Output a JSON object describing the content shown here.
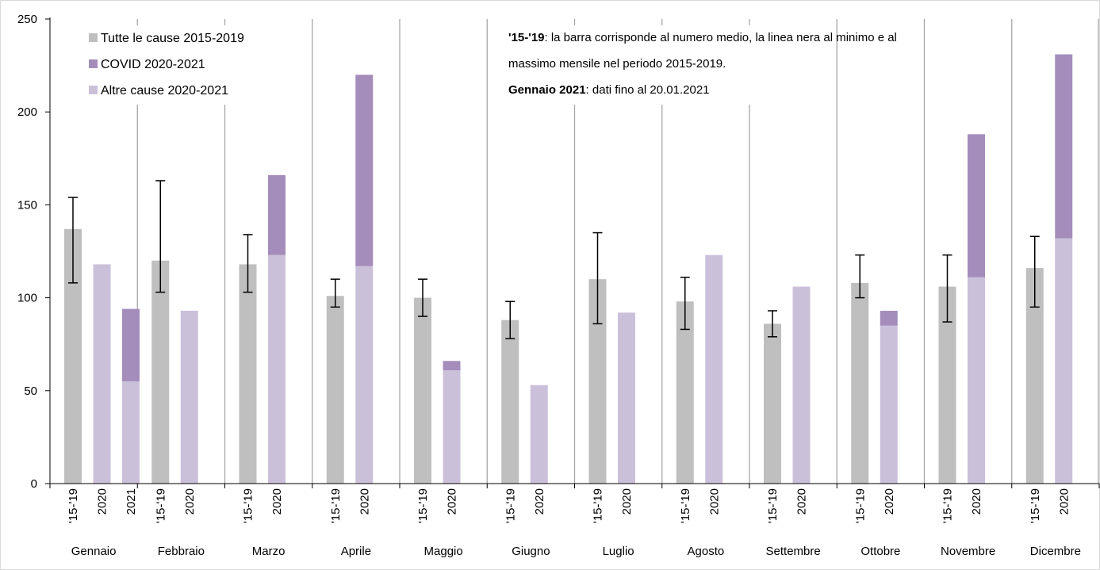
{
  "chart_data": {
    "type": "bar",
    "stacked": true,
    "ylim": [
      0,
      250
    ],
    "yticks": [
      0,
      50,
      100,
      150,
      200,
      250
    ],
    "grid": false,
    "legend_position": "top-left",
    "colors": {
      "baseline": "#bfbfbf",
      "covid": "#a48dbb",
      "other": "#cbc0da",
      "errorbar": "#000000",
      "separator": "#a6a6a6"
    },
    "legend": [
      {
        "key": "baseline",
        "label": "Tutte le cause 2015-2019"
      },
      {
        "key": "covid",
        "label": "COVID 2020-2021"
      },
      {
        "key": "other",
        "label": "Altre cause 2020-2021"
      }
    ],
    "notes": [
      {
        "bold": "'15-'19",
        "text": ": la barra corrisponde al numero medio, la linea nera al minimo e al"
      },
      {
        "bold": "",
        "text": "massimo mensile nel periodo 2015-2019."
      },
      {
        "bold": "Gennaio 2021",
        "text": ": dati fino al 20.01.2021"
      }
    ],
    "months": [
      {
        "name": "Gennaio",
        "bars": [
          {
            "label": "'15-'19",
            "mean": 137,
            "min": 108,
            "max": 154
          },
          {
            "label": "2020",
            "other": 118,
            "covid": 0
          },
          {
            "label": "2021",
            "other": 55,
            "covid": 39
          }
        ]
      },
      {
        "name": "Febbraio",
        "bars": [
          {
            "label": "'15-'19",
            "mean": 120,
            "min": 103,
            "max": 163
          },
          {
            "label": "2020",
            "other": 93,
            "covid": 0
          }
        ]
      },
      {
        "name": "Marzo",
        "bars": [
          {
            "label": "'15-'19",
            "mean": 118,
            "min": 103,
            "max": 134
          },
          {
            "label": "2020",
            "other": 123,
            "covid": 43
          }
        ]
      },
      {
        "name": "Aprile",
        "bars": [
          {
            "label": "'15-'19",
            "mean": 101,
            "min": 95,
            "max": 110
          },
          {
            "label": "2020",
            "other": 117,
            "covid": 103
          }
        ]
      },
      {
        "name": "Maggio",
        "bars": [
          {
            "label": "'15-'19",
            "mean": 100,
            "min": 90,
            "max": 110
          },
          {
            "label": "2020",
            "other": 61,
            "covid": 5
          }
        ]
      },
      {
        "name": "Giugno",
        "bars": [
          {
            "label": "'15-'19",
            "mean": 88,
            "min": 78,
            "max": 98
          },
          {
            "label": "2020",
            "other": 53,
            "covid": 0
          }
        ]
      },
      {
        "name": "Luglio",
        "bars": [
          {
            "label": "'15-'19",
            "mean": 110,
            "min": 86,
            "max": 135
          },
          {
            "label": "2020",
            "other": 92,
            "covid": 0
          }
        ]
      },
      {
        "name": "Agosto",
        "bars": [
          {
            "label": "'15-'19",
            "mean": 98,
            "min": 83,
            "max": 111
          },
          {
            "label": "2020",
            "other": 123,
            "covid": 0
          }
        ]
      },
      {
        "name": "Settembre",
        "bars": [
          {
            "label": "'15-'19",
            "mean": 86,
            "min": 79,
            "max": 93
          },
          {
            "label": "2020",
            "other": 106,
            "covid": 0
          }
        ]
      },
      {
        "name": "Ottobre",
        "bars": [
          {
            "label": "'15-'19",
            "mean": 108,
            "min": 100,
            "max": 123
          },
          {
            "label": "2020",
            "other": 85,
            "covid": 8
          }
        ]
      },
      {
        "name": "Novembre",
        "bars": [
          {
            "label": "'15-'19",
            "mean": 106,
            "min": 87,
            "max": 123
          },
          {
            "label": "2020",
            "other": 111,
            "covid": 77
          }
        ]
      },
      {
        "name": "Dicembre",
        "bars": [
          {
            "label": "'15-'19",
            "mean": 116,
            "min": 95,
            "max": 133
          },
          {
            "label": "2020",
            "other": 132,
            "covid": 99
          }
        ]
      }
    ]
  }
}
